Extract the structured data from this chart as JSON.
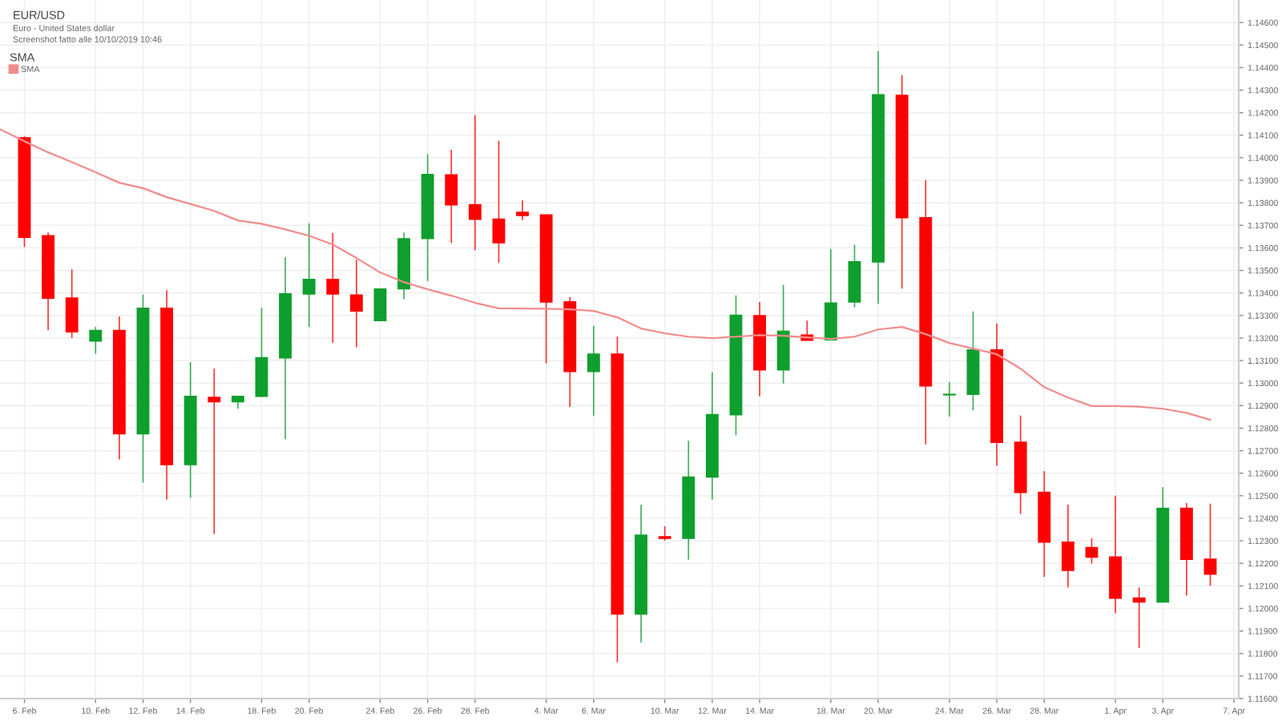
{
  "chart_data": {
    "type": "candlestick",
    "title": "EUR/USD",
    "subtitle": "Euro - United States dollar",
    "annotations": [
      "Screenshot fatto alle 10/10/2019 10:46"
    ],
    "legend_title": "SMA",
    "legend": "top left",
    "grid": true,
    "categories": [
      null,
      "6. Feb",
      null,
      null,
      "10. Feb",
      null,
      "12. Feb",
      null,
      "14. Feb",
      null,
      null,
      "18. Feb",
      null,
      "20. Feb",
      null,
      null,
      "24. Feb",
      null,
      "26. Feb",
      null,
      "28. Feb",
      null,
      null,
      "4. Mar",
      null,
      "6. Mar",
      null,
      null,
      "10. Mar",
      null,
      "12. Mar",
      null,
      "14. Mar",
      null,
      null,
      "18. Mar",
      null,
      "20. Mar",
      null,
      null,
      "24. Mar",
      null,
      "26. Mar",
      null,
      "28. Mar",
      null,
      null,
      "1. Apr",
      null,
      "3. Apr",
      null,
      null,
      "7. Apr"
    ],
    "ohlc": [
      null,
      [
        1.14088,
        1.14095,
        1.13604,
        1.13647
      ],
      [
        1.13654,
        1.13668,
        1.13235,
        1.13377
      ],
      [
        1.13377,
        1.13505,
        1.13199,
        1.13228
      ],
      [
        1.13187,
        1.13249,
        1.1313,
        1.13233
      ],
      [
        1.13233,
        1.13296,
        1.12661,
        1.12775
      ],
      [
        1.12775,
        1.13393,
        1.12559,
        1.13332
      ],
      [
        1.13332,
        1.13412,
        1.12483,
        1.12638
      ],
      [
        1.12638,
        1.13093,
        1.12491,
        1.12941
      ],
      [
        1.12936,
        1.13064,
        1.1233,
        1.12917
      ],
      [
        1.12917,
        1.12943,
        1.12886,
        1.12941
      ],
      [
        1.12941,
        1.13334,
        1.12941,
        1.13112
      ],
      [
        1.13112,
        1.13559,
        1.12751,
        1.13396
      ],
      [
        1.13396,
        1.13709,
        1.13249,
        1.1346
      ],
      [
        1.1346,
        1.13666,
        1.13178,
        1.13396
      ],
      [
        1.13391,
        1.13547,
        1.13159,
        1.1332
      ],
      [
        1.13277,
        1.13417,
        1.13277,
        1.13417
      ],
      [
        1.13419,
        1.13668,
        1.13372,
        1.1364
      ],
      [
        1.13642,
        1.14016,
        1.13453,
        1.13926
      ],
      [
        1.13924,
        1.14036,
        1.13621,
        1.13791
      ],
      [
        1.13791,
        1.14189,
        1.1359,
        1.13727
      ],
      [
        1.13727,
        1.14075,
        1.13533,
        1.13623
      ],
      [
        1.13758,
        1.1381,
        1.13723,
        1.13744
      ],
      [
        1.13746,
        1.13746,
        1.13088,
        1.1336
      ],
      [
        1.1336,
        1.13382,
        1.12894,
        1.13052
      ],
      [
        1.13052,
        1.13254,
        1.12856,
        1.13128
      ],
      [
        1.13128,
        1.13206,
        1.11761,
        1.11975
      ],
      [
        1.11975,
        1.1246,
        1.11849,
        1.12325
      ],
      [
        1.12318,
        1.12365,
        1.12301,
        1.12311
      ],
      [
        1.12311,
        1.12744,
        1.12216,
        1.12583
      ],
      [
        1.12583,
        1.13048,
        1.12483,
        1.1286
      ],
      [
        1.1286,
        1.13389,
        1.12768,
        1.13301
      ],
      [
        1.13299,
        1.1336,
        1.12941,
        1.13059
      ],
      [
        1.13059,
        1.13436,
        1.12998,
        1.1323
      ],
      [
        1.13213,
        1.13277,
        1.1319,
        1.1319
      ],
      [
        1.13192,
        1.13595,
        1.13192,
        1.13355
      ],
      [
        1.1336,
        1.13614,
        1.13336,
        1.13538
      ],
      [
        1.13538,
        1.14473,
        1.13353,
        1.14279
      ],
      [
        1.14277,
        1.14367,
        1.13419,
        1.13734
      ],
      [
        1.13734,
        1.13901,
        1.12728,
        1.12988
      ],
      [
        1.12948,
        1.13005,
        1.12851,
        1.1295
      ],
      [
        1.1295,
        1.13318,
        1.12879,
        1.13147
      ],
      [
        1.13147,
        1.13265,
        1.12633,
        1.12737
      ],
      [
        1.12737,
        1.12856,
        1.12419,
        1.12515
      ],
      [
        1.12515,
        1.12609,
        1.1214,
        1.12294
      ],
      [
        1.12294,
        1.1246,
        1.12093,
        1.12169
      ],
      [
        1.1227,
        1.12311,
        1.12199,
        1.12228
      ],
      [
        1.12228,
        1.125,
        1.11979,
        1.12046
      ],
      [
        1.12046,
        1.12093,
        1.11825,
        1.12029
      ],
      [
        1.12029,
        1.12538,
        1.12029,
        1.12444
      ],
      [
        1.12444,
        1.12467,
        1.12057,
        1.12218
      ],
      [
        1.12218,
        1.12465,
        1.121,
        1.12152
      ],
      null
    ],
    "colors": [
      null,
      "#ff0000",
      "#ff0000",
      "#ff0000",
      "#0e9f2e",
      "#ff0000",
      "#0e9f2e",
      "#ff0000",
      "#0e9f2e",
      "#ff0000",
      "#0e9f2e",
      "#0e9f2e",
      "#0e9f2e",
      "#0e9f2e",
      "#ff0000",
      "#ff0000",
      "#0e9f2e",
      "#0e9f2e",
      "#0e9f2e",
      "#ff0000",
      "#ff0000",
      "#ff0000",
      "#ff0000",
      "#ff0000",
      "#ff0000",
      "#0e9f2e",
      "#ff0000",
      "#0e9f2e",
      "#ff0000",
      "#0e9f2e",
      "#0e9f2e",
      "#0e9f2e",
      "#ff0000",
      "#0e9f2e",
      "#ff0000",
      "#0e9f2e",
      "#0e9f2e",
      "#0e9f2e",
      "#ff0000",
      "#ff0000",
      "#0e9f2e",
      "#0e9f2e",
      "#ff0000",
      "#ff0000",
      "#ff0000",
      "#ff0000",
      "#ff0000",
      "#ff0000",
      "#ff0000",
      "#0e9f2e",
      "#ff0000",
      "#ff0000",
      null
    ],
    "series": [
      {
        "name": "SMA",
        "type": "line",
        "color": "#f28c8c",
        "values": [
          1.14125,
          1.14073,
          1.14024,
          1.13981,
          1.13936,
          1.13889,
          1.13865,
          1.13825,
          1.13795,
          1.13764,
          1.13722,
          1.13707,
          1.13682,
          1.13654,
          1.13615,
          1.13555,
          1.13491,
          1.13448,
          1.13416,
          1.13388,
          1.13356,
          1.13332,
          1.13331,
          1.1333,
          1.13327,
          1.1332,
          1.13292,
          1.13242,
          1.13221,
          1.13206,
          1.13199,
          1.13206,
          1.13213,
          1.1321,
          1.13203,
          1.13196,
          1.13206,
          1.13238,
          1.13249,
          1.13217,
          1.13178,
          1.13153,
          1.13128,
          1.13064,
          1.12982,
          1.12936,
          1.12898,
          1.12898,
          1.12895,
          1.12886,
          1.12868,
          1.12837,
          null
        ]
      }
    ],
    "ylim": [
      1.116,
      1.147
    ],
    "yticks": [
      {
        "value": 1.116,
        "label": "1.11600"
      },
      {
        "value": 1.117,
        "label": "1.11700"
      },
      {
        "value": 1.118,
        "label": "1.11800"
      },
      {
        "value": 1.119,
        "label": "1.11900"
      },
      {
        "value": 1.12,
        "label": "1.12000"
      },
      {
        "value": 1.121,
        "label": "1.12100"
      },
      {
        "value": 1.122,
        "label": "1.12200"
      },
      {
        "value": 1.123,
        "label": "1.12300"
      },
      {
        "value": 1.124,
        "label": "1.12400"
      },
      {
        "value": 1.125,
        "label": "1.12500"
      },
      {
        "value": 1.126,
        "label": "1.12600"
      },
      {
        "value": 1.127,
        "label": "1.12700"
      },
      {
        "value": 1.128,
        "label": "1.12800"
      },
      {
        "value": 1.129,
        "label": "1.12900"
      },
      {
        "value": 1.13,
        "label": "1.13000"
      },
      {
        "value": 1.131,
        "label": "1.13100"
      },
      {
        "value": 1.132,
        "label": "1.13200"
      },
      {
        "value": 1.133,
        "label": "1.13300"
      },
      {
        "value": 1.134,
        "label": "1.13400"
      },
      {
        "value": 1.135,
        "label": "1.13500"
      },
      {
        "value": 1.136,
        "label": "1.13600"
      },
      {
        "value": 1.137,
        "label": "1.13700"
      },
      {
        "value": 1.138,
        "label": "1.13800"
      },
      {
        "value": 1.139,
        "label": "1.13900"
      },
      {
        "value": 1.14,
        "label": "1.14000"
      },
      {
        "value": 1.141,
        "label": "1.14100"
      },
      {
        "value": 1.142,
        "label": "1.14200"
      },
      {
        "value": 1.143,
        "label": "1.14300"
      },
      {
        "value": 1.144,
        "label": "1.14400"
      },
      {
        "value": 1.145,
        "label": "1.14500"
      },
      {
        "value": 1.146,
        "label": "1.14600"
      }
    ]
  }
}
